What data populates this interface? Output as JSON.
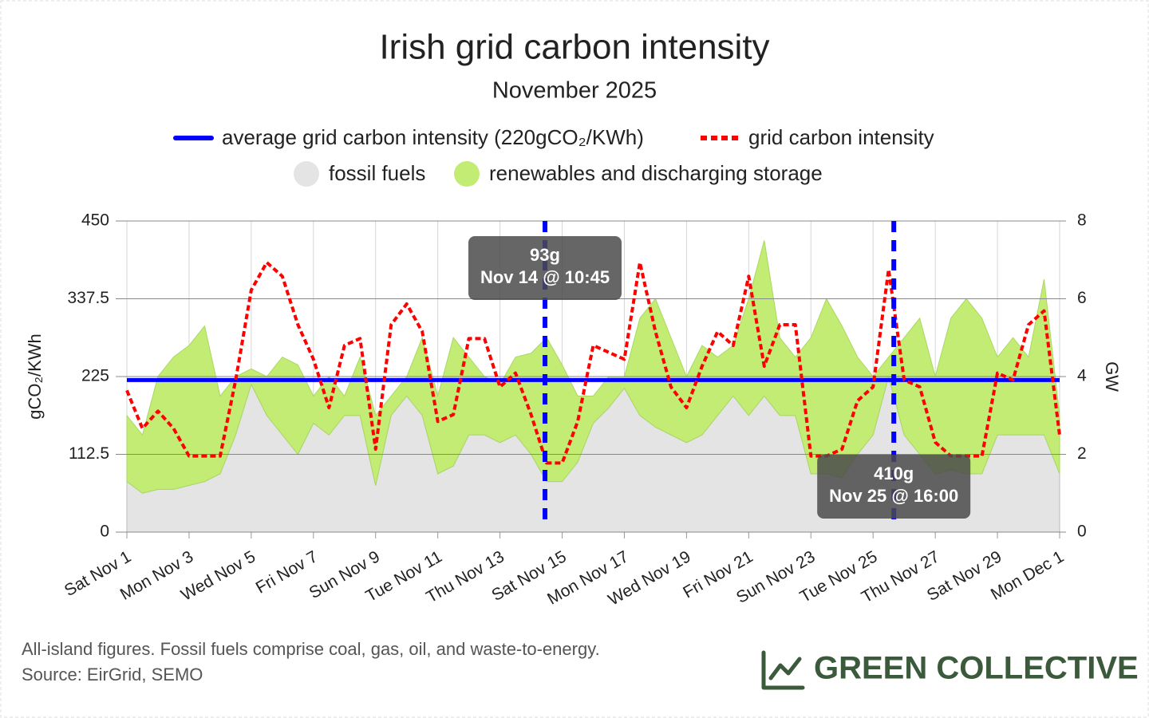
{
  "chart_data": {
    "type": "line",
    "title": "Irish grid carbon intensity",
    "subtitle": "November 2025",
    "y_label": "gCO₂/KWh",
    "y2_label": "GW",
    "xlim": [
      "Nov 1 00:00",
      "Dec 1 00:00"
    ],
    "ylim": [
      0,
      450
    ],
    "yticks": [
      0,
      112.5,
      225,
      337.5,
      450
    ],
    "y2lim": [
      0,
      8
    ],
    "y2ticks": [
      0,
      2,
      4,
      6,
      8
    ],
    "grid": true,
    "xticks": [
      {
        "value": "Nov 1 00:00",
        "label": "Sat Nov 1"
      },
      {
        "value": "Nov 3 00:00",
        "label": "Mon Nov 3"
      },
      {
        "value": "Nov 5 00:00",
        "label": "Wed Nov 5"
      },
      {
        "value": "Nov 7 00:00",
        "label": "Fri Nov 7"
      },
      {
        "value": "Nov 9 00:00",
        "label": "Sun Nov 9"
      },
      {
        "value": "Nov 11 00:00",
        "label": "Tue Nov 11"
      },
      {
        "value": "Nov 13 00:00",
        "label": "Thu Nov 13"
      },
      {
        "value": "Nov 15 00:00",
        "label": "Sat Nov 15"
      },
      {
        "value": "Nov 17 00:00",
        "label": "Mon Nov 17"
      },
      {
        "value": "Nov 19 00:00",
        "label": "Wed Nov 19"
      },
      {
        "value": "Nov 21 00:00",
        "label": "Fri Nov 21"
      },
      {
        "value": "Nov 23 00:00",
        "label": "Sun Nov 23"
      },
      {
        "value": "Nov 25 00:00",
        "label": "Tue Nov 25"
      },
      {
        "value": "Nov 27 00:00",
        "label": "Thu Nov 27"
      },
      {
        "value": "Nov 29 00:00",
        "label": "Sat Nov 29"
      },
      {
        "value": "Dec 1 00:00",
        "label": "Mon Dec 1"
      }
    ],
    "x": [
      "Nov 1 00:00",
      "Nov 1 12:00",
      "Nov 2 00:00",
      "Nov 2 12:00",
      "Nov 3 00:00",
      "Nov 3 12:00",
      "Nov 4 00:00",
      "Nov 4 12:00",
      "Nov 5 00:00",
      "Nov 5 12:00",
      "Nov 6 00:00",
      "Nov 6 12:00",
      "Nov 7 00:00",
      "Nov 7 12:00",
      "Nov 8 00:00",
      "Nov 8 12:00",
      "Nov 9 00:00",
      "Nov 9 12:00",
      "Nov 10 00:00",
      "Nov 10 12:00",
      "Nov 11 00:00",
      "Nov 11 12:00",
      "Nov 12 00:00",
      "Nov 12 12:00",
      "Nov 13 00:00",
      "Nov 13 12:00",
      "Nov 14 00:00",
      "Nov 14 12:00",
      "Nov 15 00:00",
      "Nov 15 12:00",
      "Nov 16 00:00",
      "Nov 16 12:00",
      "Nov 17 00:00",
      "Nov 17 12:00",
      "Nov 18 00:00",
      "Nov 18 12:00",
      "Nov 19 00:00",
      "Nov 19 12:00",
      "Nov 20 00:00",
      "Nov 20 12:00",
      "Nov 21 00:00",
      "Nov 21 12:00",
      "Nov 22 00:00",
      "Nov 22 12:00",
      "Nov 23 00:00",
      "Nov 23 12:00",
      "Nov 24 00:00",
      "Nov 24 12:00",
      "Nov 25 00:00",
      "Nov 25 12:00",
      "Nov 26 00:00",
      "Nov 26 12:00",
      "Nov 27 00:00",
      "Nov 27 12:00",
      "Nov 28 00:00",
      "Nov 28 12:00",
      "Nov 29 00:00",
      "Nov 29 12:00",
      "Nov 30 00:00",
      "Nov 30 12:00",
      "Dec 1 00:00"
    ],
    "average_line": {
      "name": "average grid carbon intensity (220gCO₂/KWh)",
      "value": 220,
      "color": "#0000ff"
    },
    "series": [
      {
        "name": "grid carbon intensity",
        "color": "#ff0000",
        "axis": "y",
        "values": [
          205,
          150,
          175,
          150,
          110,
          110,
          110,
          220,
          350,
          390,
          370,
          300,
          250,
          180,
          270,
          280,
          120,
          300,
          330,
          290,
          160,
          170,
          280,
          280,
          210,
          230,
          170,
          100,
          100,
          160,
          270,
          260,
          250,
          390,
          290,
          210,
          180,
          240,
          290,
          270,
          370,
          240,
          300,
          300,
          110,
          110,
          120,
          190,
          210,
          380,
          220,
          210,
          130,
          110,
          110,
          110,
          230,
          220,
          300,
          320,
          140
        ]
      },
      {
        "name": "fossil fuels",
        "color": "#e4e4e4",
        "axis": "y2",
        "values": [
          1.3,
          1.0,
          1.1,
          1.1,
          1.2,
          1.3,
          1.5,
          2.5,
          3.8,
          3.0,
          2.5,
          2.0,
          2.8,
          2.5,
          3.0,
          3.0,
          1.2,
          3.0,
          3.5,
          3.0,
          1.5,
          1.7,
          2.5,
          2.5,
          2.3,
          2.5,
          2.0,
          1.3,
          1.3,
          1.8,
          2.8,
          3.2,
          3.7,
          3.0,
          2.7,
          2.5,
          2.3,
          2.5,
          3.0,
          3.5,
          3.0,
          3.5,
          3.0,
          3.0,
          1.5,
          1.5,
          1.4,
          2.0,
          2.5,
          4.0,
          2.5,
          2.0,
          1.5,
          1.6,
          1.5,
          1.5,
          2.5,
          2.5,
          2.5,
          2.5,
          1.5
        ]
      },
      {
        "name": "renewables and discharging storage",
        "color": "#c3ec74",
        "axis": "y2",
        "values": [
          1.7,
          1.5,
          2.9,
          3.4,
          3.6,
          4.0,
          2.0,
          1.5,
          0.4,
          1.0,
          2.0,
          2.3,
          0.7,
          1.5,
          0.5,
          1.5,
          1.8,
          0.5,
          0.5,
          2.0,
          2.0,
          3.3,
          2.0,
          1.5,
          1.5,
          2.0,
          2.6,
          3.7,
          3.0,
          1.7,
          0.7,
          0.8,
          0.3,
          2.5,
          3.3,
          2.5,
          1.7,
          2.3,
          1.5,
          1.3,
          3.0,
          4.0,
          2.0,
          1.5,
          3.5,
          4.5,
          3.9,
          2.5,
          1.5,
          0.5,
          2.5,
          3.5,
          2.5,
          3.9,
          4.5,
          4.0,
          2.0,
          2.5,
          2.0,
          4.0,
          1.5
        ]
      }
    ],
    "annotations": [
      {
        "x": "Nov 14 10:45",
        "label": "93g",
        "text": "Nov 14 @ 10:45"
      },
      {
        "x": "Nov 25 16:00",
        "label": "410g",
        "text": "Nov 25 @ 16:00"
      }
    ],
    "footnote": [
      "All-island figures. Fossil fuels comprise coal, gas, oil, and waste-to-energy.",
      "Source: EirGrid, SEMO"
    ],
    "brand": "GREEN COLLECTIVE"
  }
}
